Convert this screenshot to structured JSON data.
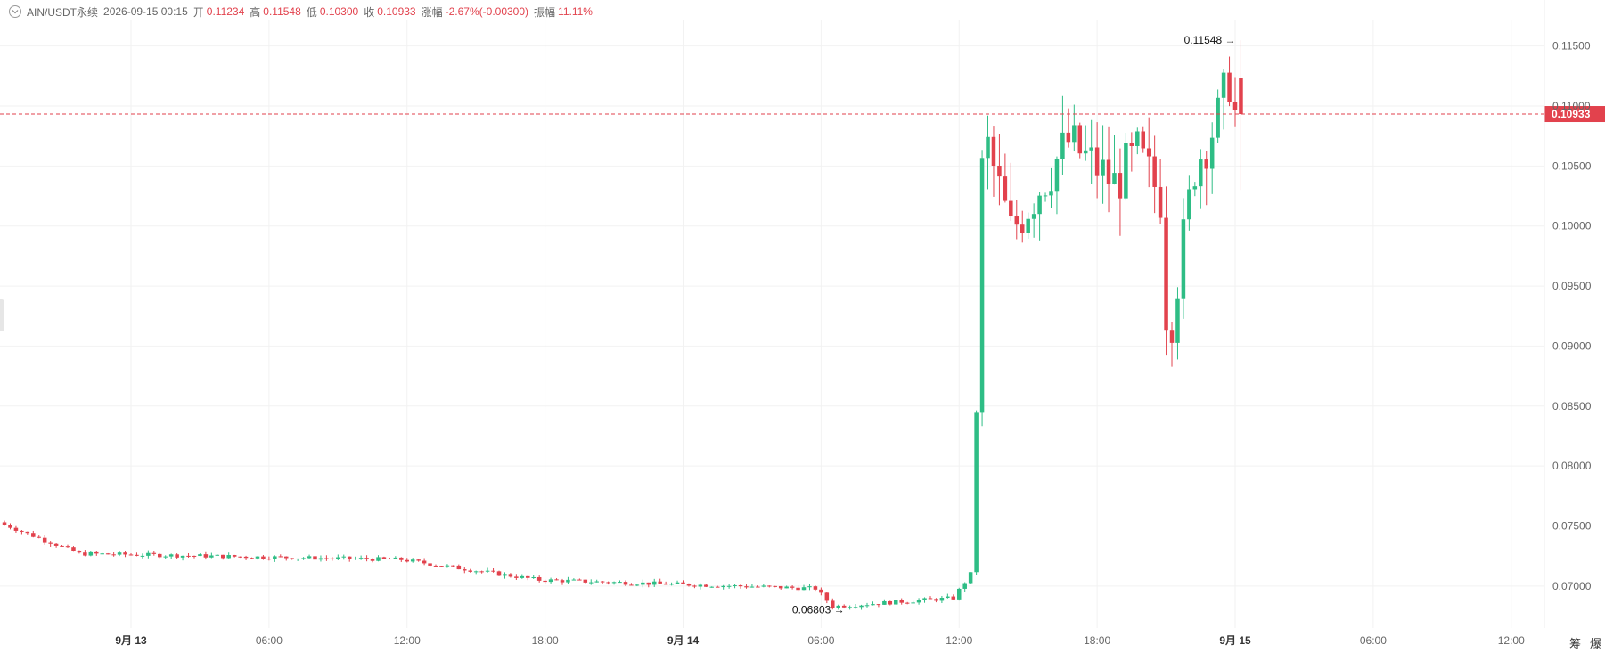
{
  "symbol": "AIN/USDT永续",
  "datetime": "2026-09-15 00:15",
  "ohlc": {
    "open_label": "开",
    "open": "0.11234",
    "high_label": "高",
    "high": "0.11548",
    "low_label": "低",
    "low": "0.10300",
    "close_label": "收",
    "close": "0.10933",
    "change_label": "涨幅",
    "change": "-2.67%(-0.00300)",
    "amplitude_label": "振幅",
    "amplitude": "11.11%"
  },
  "price_axis": {
    "ticks": [
      "0.11500",
      "0.11000",
      "0.10500",
      "0.10000",
      "0.09500",
      "0.09000",
      "0.08500",
      "0.08000",
      "0.07500",
      "0.07000"
    ],
    "current_price": "0.10933"
  },
  "time_axis": {
    "ticks": [
      "9月 13",
      "06:00",
      "12:00",
      "18:00",
      "9月 14",
      "06:00",
      "12:00",
      "18:00",
      "9月 15",
      "06:00",
      "12:00"
    ],
    "bold": [
      true,
      false,
      false,
      false,
      true,
      false,
      false,
      false,
      true,
      false,
      false
    ]
  },
  "annotations": {
    "high_marker": "0.11548",
    "low_marker": "0.06803"
  },
  "bottom_tools": [
    "筹",
    "爆"
  ],
  "colors": {
    "up": "#2ebd85",
    "down": "#e2424d",
    "grid": "#f2f2f2",
    "axis_text": "#666666"
  },
  "chart_data": {
    "type": "candlestick",
    "interval_minutes": 15,
    "first_candle": "2026-09-12 18:30",
    "last_candle": "2026-09-15 00:15",
    "ylim": [
      0.0665,
      0.1172
    ],
    "key_points": [
      {
        "time": "2026-09-12 18:30",
        "price": 0.0753
      },
      {
        "time": "2026-09-12 22:00",
        "price": 0.0727
      },
      {
        "time": "2026-09-13 12:00",
        "price": 0.0722
      },
      {
        "time": "2026-09-13 18:00",
        "price": 0.0705
      },
      {
        "time": "2026-09-14 06:00",
        "price": 0.0698
      },
      {
        "time": "2026-09-14 06:45",
        "price": 0.0683
      },
      {
        "time": "2026-09-14 12:00",
        "price": 0.069
      },
      {
        "time": "2026-09-14 12:45",
        "price": 0.071
      },
      {
        "time": "2026-09-14 13:00",
        "price": 0.0845
      },
      {
        "time": "2026-09-14 13:15",
        "price": 0.1045
      },
      {
        "time": "2026-09-14 13:30",
        "price": 0.1065
      },
      {
        "time": "2026-09-14 14:30",
        "price": 0.0995
      },
      {
        "time": "2026-09-14 17:00",
        "price": 0.107
      },
      {
        "time": "2026-09-14 19:00",
        "price": 0.1035
      },
      {
        "time": "2026-09-14 20:00",
        "price": 0.106
      },
      {
        "time": "2026-09-14 21:00",
        "price": 0.1025
      },
      {
        "time": "2026-09-14 21:15",
        "price": 0.093
      },
      {
        "time": "2026-09-14 21:30",
        "price": 0.0925
      },
      {
        "time": "2026-09-14 22:30",
        "price": 0.105
      },
      {
        "time": "2026-09-14 23:30",
        "price": 0.109
      },
      {
        "time": "2026-09-15 00:00",
        "price": 0.1123
      },
      {
        "time": "2026-09-15 00:15",
        "price": 0.10933
      }
    ],
    "period_high": 0.11548,
    "period_low": 0.06803,
    "last_price": 0.10933
  }
}
